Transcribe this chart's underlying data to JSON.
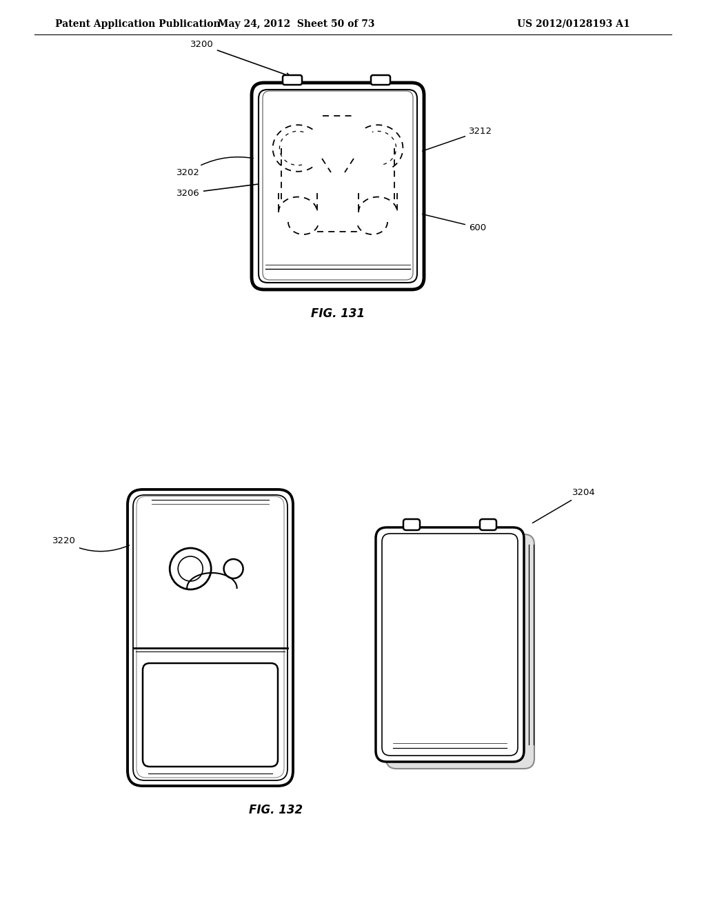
{
  "bg_color": "#ffffff",
  "header_left": "Patent Application Publication",
  "header_mid": "May 24, 2012  Sheet 50 of 73",
  "header_right": "US 2012/0128193 A1",
  "fig131_label": "FIG. 131",
  "fig132_label": "FIG. 132"
}
